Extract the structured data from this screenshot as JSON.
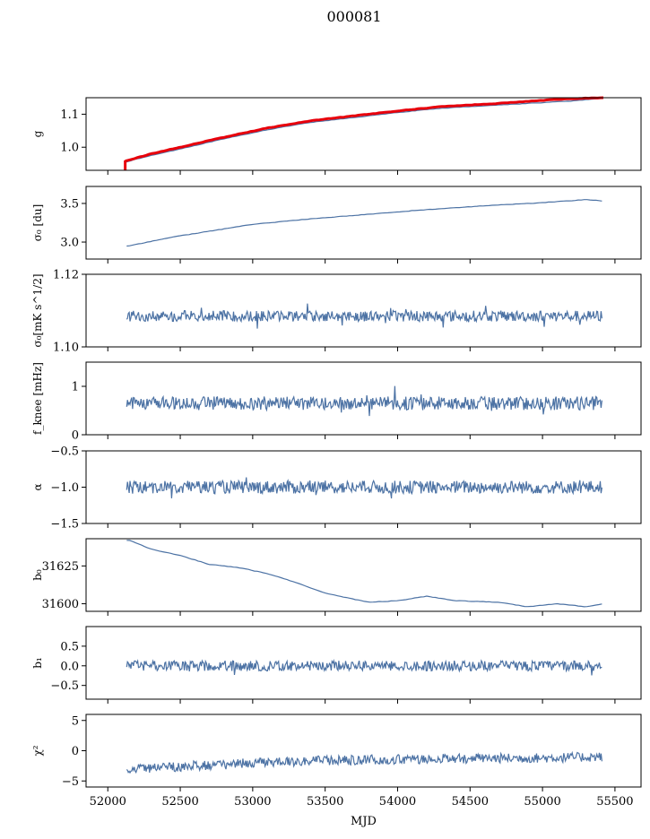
{
  "figure_title": "000081",
  "chart_data": [
    {
      "type": "line",
      "ylabel": "g",
      "ylim": [
        0.93,
        1.15
      ],
      "yticks": [
        "1.0",
        "1.1"
      ],
      "xlim": [
        51850,
        55680
      ],
      "x_range": [
        52120,
        55420
      ],
      "series": [
        {
          "color": "#4c72a4",
          "anchors": [
            [
              52120,
              0.955
            ],
            [
              52300,
              0.975
            ],
            [
              52500,
              0.995
            ],
            [
              52800,
              1.025
            ],
            [
              53100,
              1.053
            ],
            [
              53400,
              1.075
            ],
            [
              53700,
              1.09
            ],
            [
              54000,
              1.105
            ],
            [
              54300,
              1.118
            ],
            [
              54700,
              1.128
            ],
            [
              55000,
              1.135
            ],
            [
              55200,
              1.14
            ],
            [
              55420,
              1.148
            ]
          ]
        },
        {
          "color": "#e8000b",
          "anchors": [
            [
              52120,
              0.958
            ],
            [
              52300,
              0.98
            ],
            [
              52500,
              1.0
            ],
            [
              52800,
              1.03
            ],
            [
              53100,
              1.058
            ],
            [
              53400,
              1.08
            ],
            [
              53700,
              1.095
            ],
            [
              54000,
              1.11
            ],
            [
              54300,
              1.123
            ],
            [
              54700,
              1.133
            ],
            [
              55000,
              1.142
            ],
            [
              55200,
              1.147
            ],
            [
              55420,
              1.15
            ]
          ]
        }
      ]
    },
    {
      "type": "line",
      "ylabel": "σ₀ [du]",
      "ylim": [
        2.78,
        3.72
      ],
      "yticks": [
        "3.0",
        "3.5"
      ],
      "xlim": [
        51850,
        55680
      ],
      "series": [
        {
          "color": "#4c72a4",
          "anchors": [
            [
              52150,
              2.95
            ],
            [
              52400,
              3.05
            ],
            [
              52800,
              3.17
            ],
            [
              53000,
              3.23
            ],
            [
              53400,
              3.3
            ],
            [
              53800,
              3.36
            ],
            [
              54200,
              3.42
            ],
            [
              54600,
              3.47
            ],
            [
              55000,
              3.51
            ],
            [
              55300,
              3.55
            ],
            [
              55420,
              3.53
            ]
          ]
        }
      ]
    },
    {
      "type": "line",
      "ylabel": "σ₀[mK s^1/2]",
      "ylim": [
        1.1,
        1.12
      ],
      "yticks": [
        "1.10",
        "1.12"
      ],
      "xlim": [
        51850,
        55680
      ],
      "series": [
        {
          "color": "#4c72a4",
          "mean": 1.1085,
          "noise": 0.0015
        }
      ]
    },
    {
      "type": "line",
      "ylabel": "f_knee [mHz]",
      "ylim": [
        0,
        1.5
      ],
      "yticks": [
        "0",
        "1"
      ],
      "xlim": [
        51850,
        55680
      ],
      "series": [
        {
          "color": "#4c72a4",
          "mean": 0.65,
          "noise": 0.14
        }
      ]
    },
    {
      "type": "line",
      "ylabel": "α",
      "ylim": [
        -1.5,
        -0.5
      ],
      "yticks": [
        "−1.5",
        "−1.0",
        "−0.5"
      ],
      "xlim": [
        51850,
        55680
      ],
      "series": [
        {
          "color": "#4c72a4",
          "mean": -1.0,
          "noise": 0.09
        }
      ]
    },
    {
      "type": "line",
      "ylabel": "b₀",
      "ylim": [
        31595,
        31643
      ],
      "yticks": [
        "31600",
        "31625"
      ],
      "xlim": [
        51850,
        55680
      ],
      "series": [
        {
          "color": "#4c72a4",
          "anchors": [
            [
              52150,
              31642
            ],
            [
              52300,
              31636
            ],
            [
              52500,
              31632
            ],
            [
              52700,
              31626
            ],
            [
              52900,
              31624
            ],
            [
              53100,
              31620
            ],
            [
              53300,
              31614
            ],
            [
              53500,
              31607
            ],
            [
              53800,
              31601
            ],
            [
              54000,
              31602
            ],
            [
              54200,
              31605
            ],
            [
              54400,
              31602
            ],
            [
              54700,
              31601
            ],
            [
              54900,
              31598
            ],
            [
              55100,
              31600
            ],
            [
              55300,
              31598
            ],
            [
              55420,
              31600
            ]
          ]
        }
      ]
    },
    {
      "type": "line",
      "ylabel": "b₁",
      "ylim": [
        -0.85,
        1.0
      ],
      "yticks": [
        "−0.5",
        "0.0",
        "0.5"
      ],
      "xlim": [
        51850,
        55680
      ],
      "series": [
        {
          "color": "#4c72a4",
          "mean": 0.0,
          "noise": 0.13
        }
      ]
    },
    {
      "type": "line",
      "ylabel": "χ²",
      "ylim": [
        -6,
        6
      ],
      "yticks": [
        "−5",
        "0",
        "5"
      ],
      "xticks": [
        "52000",
        "52500",
        "53000",
        "53500",
        "54000",
        "54500",
        "55000",
        "55500"
      ],
      "xlabel": "MJD",
      "xlim": [
        51850,
        55680
      ],
      "series": [
        {
          "color": "#4c72a4",
          "anchors": [
            [
              52150,
              -3.0
            ],
            [
              52600,
              -2.5
            ],
            [
              53200,
              -1.8
            ],
            [
              53800,
              -1.5
            ],
            [
              54400,
              -1.3
            ],
            [
              55000,
              -1.2
            ],
            [
              55420,
              -1.0
            ]
          ],
          "noise": 0.8
        }
      ]
    }
  ]
}
